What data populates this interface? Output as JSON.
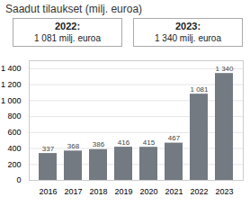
{
  "chart_data": {
    "type": "bar",
    "title": "Saadut tilaukset (milj. euroa)",
    "categories": [
      "2016",
      "2017",
      "2018",
      "2019",
      "2020",
      "2021",
      "2022",
      "2023"
    ],
    "values": [
      337,
      368,
      386,
      416,
      415,
      467,
      1081,
      1340
    ],
    "value_labels": [
      "337",
      "368",
      "386",
      "416",
      "415",
      "467",
      "1 081",
      "1 340"
    ],
    "data_labels": true,
    "color": "#737a82",
    "ylim": [
      0,
      1500
    ],
    "yticks": [
      0,
      200,
      400,
      600,
      800,
      {
        "value": 1000,
        "label": "1 000"
      },
      {
        "value": 1200,
        "label": "1 200"
      },
      {
        "value": 1400,
        "label": "1 400"
      }
    ],
    "grid": true,
    "annotations": [
      {
        "label": "2022:",
        "text": "1 081 milj. euroa"
      },
      {
        "label": "2023:",
        "text": "1 340 milj. euroa"
      }
    ]
  }
}
